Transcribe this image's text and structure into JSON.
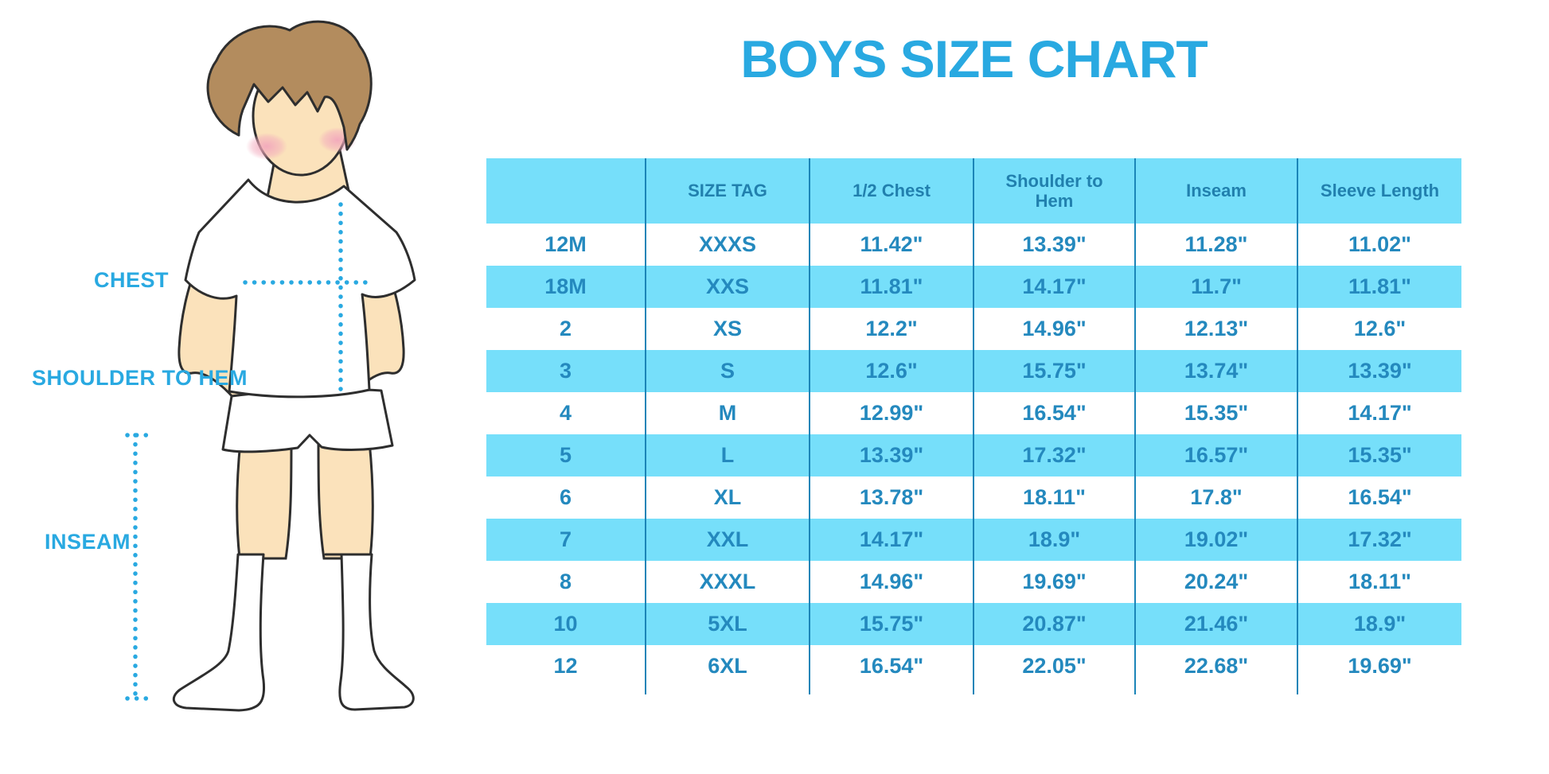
{
  "page": {
    "title": "BOYS SIZE CHART"
  },
  "colors": {
    "accent_blue": "#29A9E1",
    "row_blue": "#76DFFA",
    "table_text": "#2489BE",
    "header_text": "#2180AE",
    "divider": "#1B85B8",
    "skin": "#FBE2BB",
    "hair": "#B38C5E",
    "blush": "#F2A8BC",
    "outline": "#2E2E2E",
    "white": "#FFFFFF"
  },
  "diagram": {
    "labels": {
      "chest": "CHEST",
      "shoulder_to_hem": "SHOULDER TO HEM",
      "inseam": "INSEAM"
    }
  },
  "chart_data": {
    "type": "table",
    "title": "BOYS SIZE CHART",
    "columns": [
      "",
      "SIZE TAG",
      "1/2 Chest",
      "Shoulder to Hem",
      "Inseam",
      "Sleeve Length"
    ],
    "rows": [
      [
        "12M",
        "XXXS",
        "11.42\"",
        "13.39\"",
        "11.28\"",
        "11.02\""
      ],
      [
        "18M",
        "XXS",
        "11.81\"",
        "14.17\"",
        "11.7\"",
        "11.81\""
      ],
      [
        "2",
        "XS",
        "12.2\"",
        "14.96\"",
        "12.13\"",
        "12.6\""
      ],
      [
        "3",
        "S",
        "12.6\"",
        "15.75\"",
        "13.74\"",
        "13.39\""
      ],
      [
        "4",
        "M",
        "12.99\"",
        "16.54\"",
        "15.35\"",
        "14.17\""
      ],
      [
        "5",
        "L",
        "13.39\"",
        "17.32\"",
        "16.57\"",
        "15.35\""
      ],
      [
        "6",
        "XL",
        "13.78\"",
        "18.11\"",
        "17.8\"",
        "16.54\""
      ],
      [
        "7",
        "XXL",
        "14.17\"",
        "18.9\"",
        "19.02\"",
        "17.32\""
      ],
      [
        "8",
        "XXXL",
        "14.96\"",
        "19.69\"",
        "20.24\"",
        "18.11\""
      ],
      [
        "10",
        "5XL",
        "15.75\"",
        "20.87\"",
        "21.46\"",
        "18.9\""
      ],
      [
        "12",
        "6XL",
        "16.54\"",
        "22.05\"",
        "22.68\"",
        "19.69\""
      ]
    ]
  }
}
